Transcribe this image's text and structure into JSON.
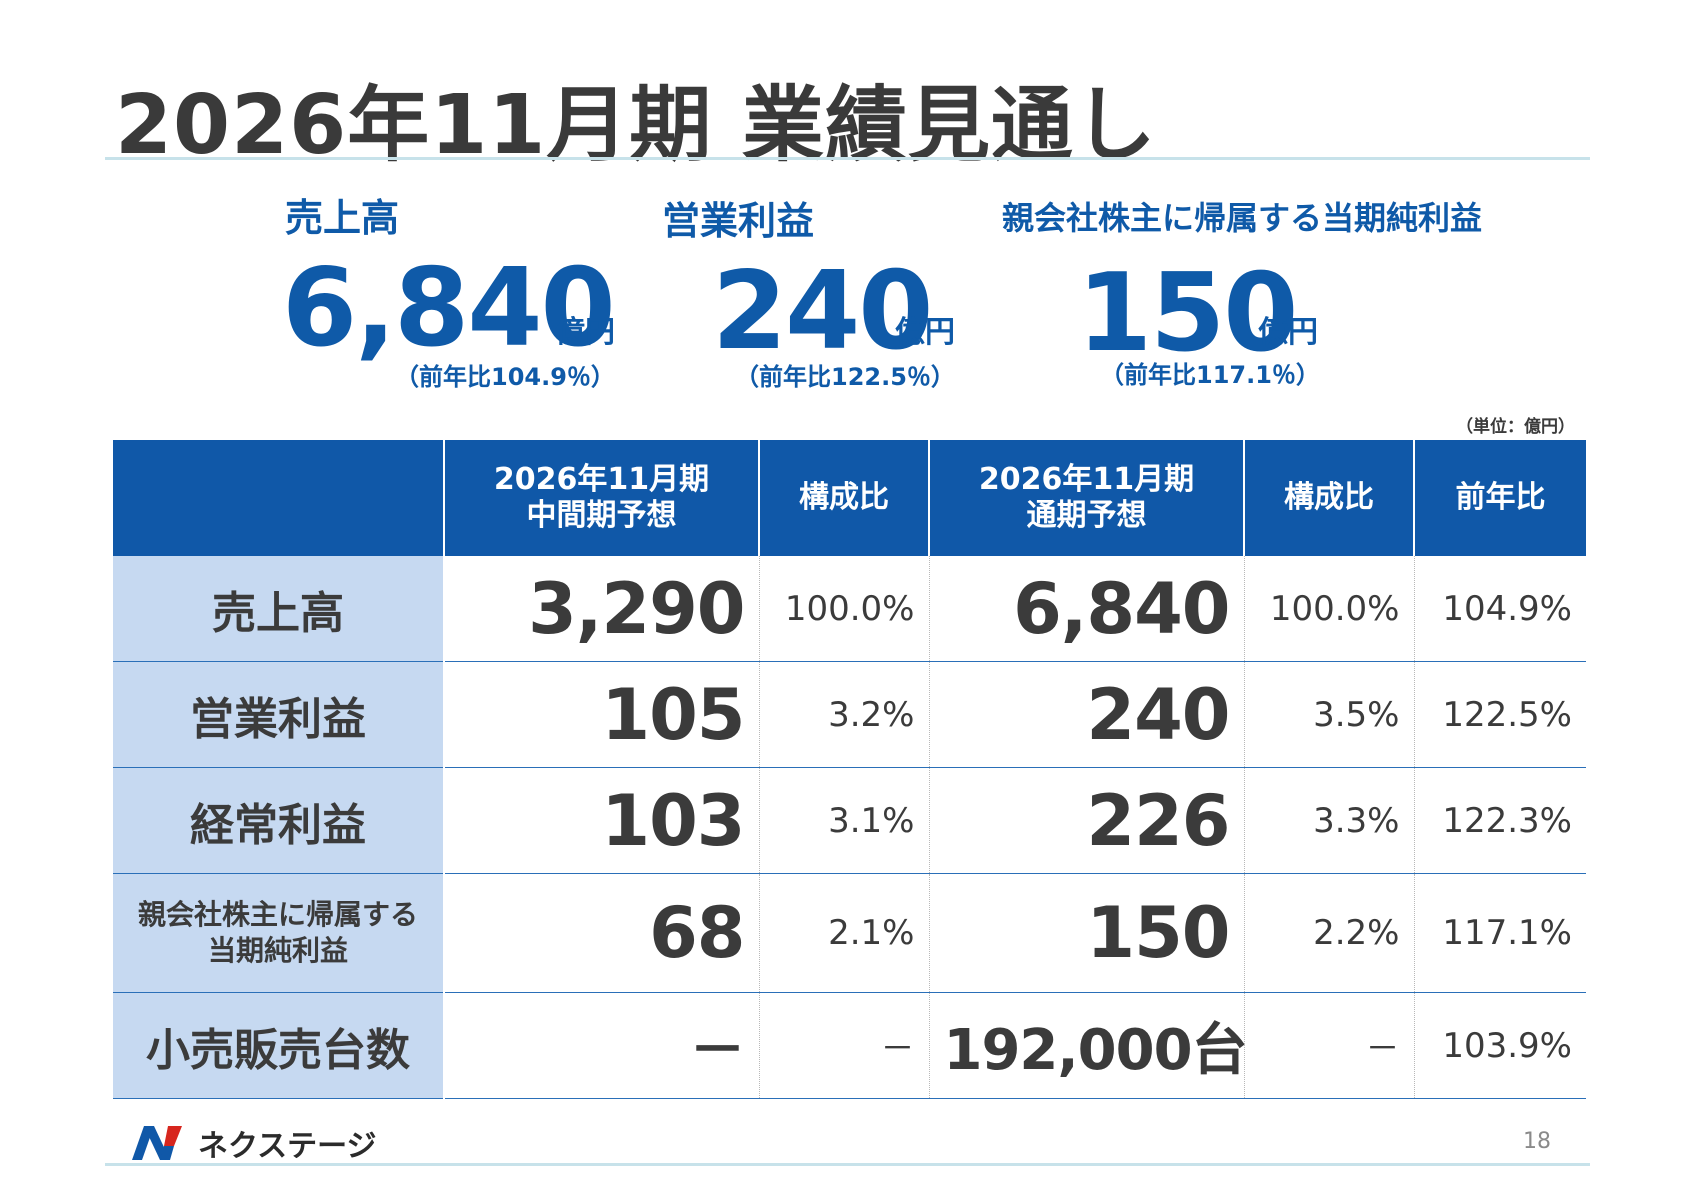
{
  "title": "2026年11月期 業績見通し",
  "kpis": [
    {
      "label": "売上高",
      "value": "6,840",
      "unit": "億円",
      "yoy": "（前年比104.9％）"
    },
    {
      "label": "営業利益",
      "value": "240",
      "unit": "億円",
      "yoy": "（前年比122.5％）"
    },
    {
      "label": "親会社株主に帰属する当期純利益",
      "value": "150",
      "unit": "億円",
      "yoy": "（前年比117.1％）"
    }
  ],
  "unit_note": "（単位：億円）",
  "table": {
    "headers": [
      "",
      "2026年11月期\n中間期予想",
      "構成比",
      "2026年11月期\n通期予想",
      "構成比",
      "前年比"
    ],
    "header_lines": {
      "interim": [
        "2026年11月期",
        "中間期予想"
      ],
      "full": [
        "2026年11月期",
        "通期予想"
      ]
    },
    "rows": [
      {
        "label": "売上高",
        "interim": "3,290",
        "interim_ratio": "100.0%",
        "full": "6,840",
        "full_ratio": "100.0%",
        "yoy": "104.9%"
      },
      {
        "label": "営業利益",
        "interim": "105",
        "interim_ratio": "3.2%",
        "full": "240",
        "full_ratio": "3.5%",
        "yoy": "122.5%"
      },
      {
        "label": "経常利益",
        "interim": "103",
        "interim_ratio": "3.1%",
        "full": "226",
        "full_ratio": "3.3%",
        "yoy": "122.3%"
      },
      {
        "label_lines": [
          "親会社株主に帰属する",
          "当期純利益"
        ],
        "interim": "68",
        "interim_ratio": "2.1%",
        "full": "150",
        "full_ratio": "2.2%",
        "yoy": "117.1%"
      },
      {
        "label": "小売販売台数",
        "interim": "－",
        "interim_ratio": "－",
        "full": "192,000台",
        "full_ratio": "－",
        "yoy": "103.9%"
      }
    ]
  },
  "footer": {
    "brand": "ネクステージ",
    "page": "18"
  },
  "colors": {
    "accent": "#1058a8",
    "row_label_bg": "#c6d9f1",
    "kpi_text": "#0f5aa8",
    "rule": "#c7e2ea"
  }
}
